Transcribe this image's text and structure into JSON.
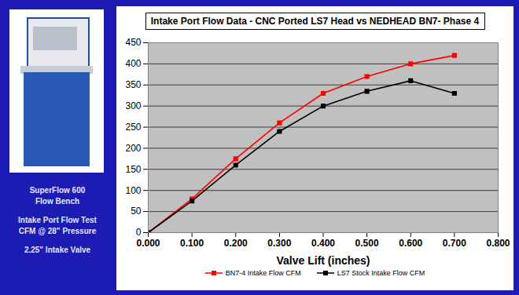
{
  "chart_data": {
    "type": "line",
    "title": "Intake Port Flow Data - CNC Ported LS7 Head vs NEDHEAD BN7- Phase 4",
    "x_label": "Valve Lift (inches)",
    "annotations": [
      "SuperFlow 600",
      "Flow Bench",
      "Intake Port Flow Test",
      "CFM @ 28\" Pressure",
      "2.25\" Intake Valve"
    ],
    "x": [
      0,
      0.1,
      0.2,
      0.3,
      0.4,
      0.5,
      0.6,
      0.7
    ],
    "series": [
      {
        "name": "BN7-4  Intake Flow CFM",
        "color": "#ff0000",
        "marker": "square",
        "values": [
          0,
          80,
          175,
          260,
          330,
          370,
          400,
          420
        ]
      },
      {
        "name": "LS7 Stock Intake Flow CFM",
        "color": "#000000",
        "marker": "square",
        "values": [
          0,
          75,
          160,
          240,
          300,
          335,
          360,
          330
        ]
      }
    ],
    "xlim": [
      0,
      0.8
    ],
    "xticks": [
      {
        "value": 0,
        "label": "0.000"
      },
      {
        "value": 0.1,
        "label": "0.100"
      },
      {
        "value": 0.2,
        "label": "0.200"
      },
      {
        "value": 0.3,
        "label": "0.300"
      },
      {
        "value": 0.4,
        "label": "0.400"
      },
      {
        "value": 0.5,
        "label": "0.500"
      },
      {
        "value": 0.6,
        "label": "0.600"
      },
      {
        "value": 0.7,
        "label": "0.700"
      },
      {
        "value": 0.8,
        "label": "0.800"
      }
    ],
    "ylim": [
      0,
      450
    ],
    "yticks": [
      0,
      50,
      100,
      150,
      200,
      250,
      300,
      350,
      400,
      450
    ],
    "grid": true,
    "legend": "bottom"
  }
}
